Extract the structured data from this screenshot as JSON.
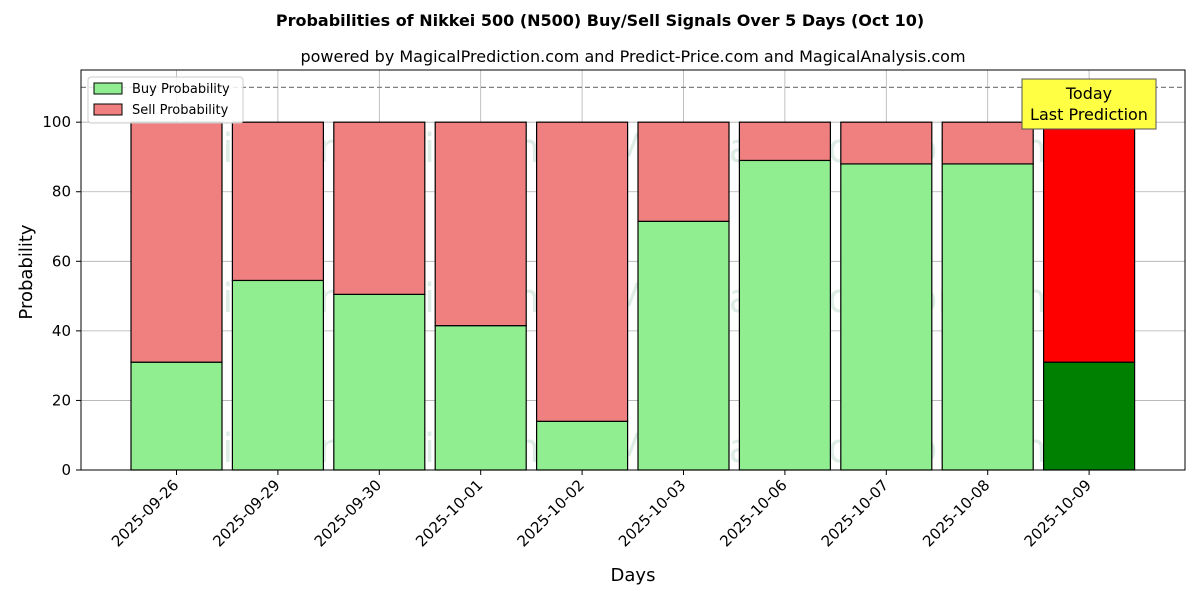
{
  "chart_data": {
    "type": "bar",
    "stacked": true,
    "title": "Probabilities of Nikkei 500 (N500) Buy/Sell Signals Over 5 Days (Oct 10)",
    "subtitle": "powered by MagicalPrediction.com and Predict-Price.com and MagicalAnalysis.com",
    "xlabel": "Days",
    "ylabel": "Probability",
    "ylim": [
      0,
      115
    ],
    "yticks": [
      0,
      20,
      40,
      60,
      80,
      100
    ],
    "grid": true,
    "legend_position": "top-left",
    "reference_line": 110,
    "categories": [
      "2025-09-26",
      "2025-09-29",
      "2025-09-30",
      "2025-10-01",
      "2025-10-02",
      "2025-10-03",
      "2025-10-06",
      "2025-10-07",
      "2025-10-08",
      "2025-10-09"
    ],
    "series": [
      {
        "name": "Buy Probability",
        "color": "#90ee90",
        "highlight_color": "#008000",
        "values": [
          31,
          54.5,
          50.5,
          41.5,
          14,
          71.5,
          89,
          88,
          88,
          31
        ]
      },
      {
        "name": "Sell Probability",
        "color": "#f08080",
        "highlight_color": "#ff0000",
        "values": [
          69,
          45.5,
          49.5,
          58.5,
          86,
          28.5,
          11,
          12,
          12,
          69
        ]
      }
    ],
    "highlight_category": "2025-10-09",
    "annotation": {
      "lines": [
        "Today",
        "Last Prediction"
      ],
      "background": "#ffff44"
    },
    "watermarks": [
      "MagicalAnalysis.com",
      "MagicalPrediction.com"
    ]
  }
}
